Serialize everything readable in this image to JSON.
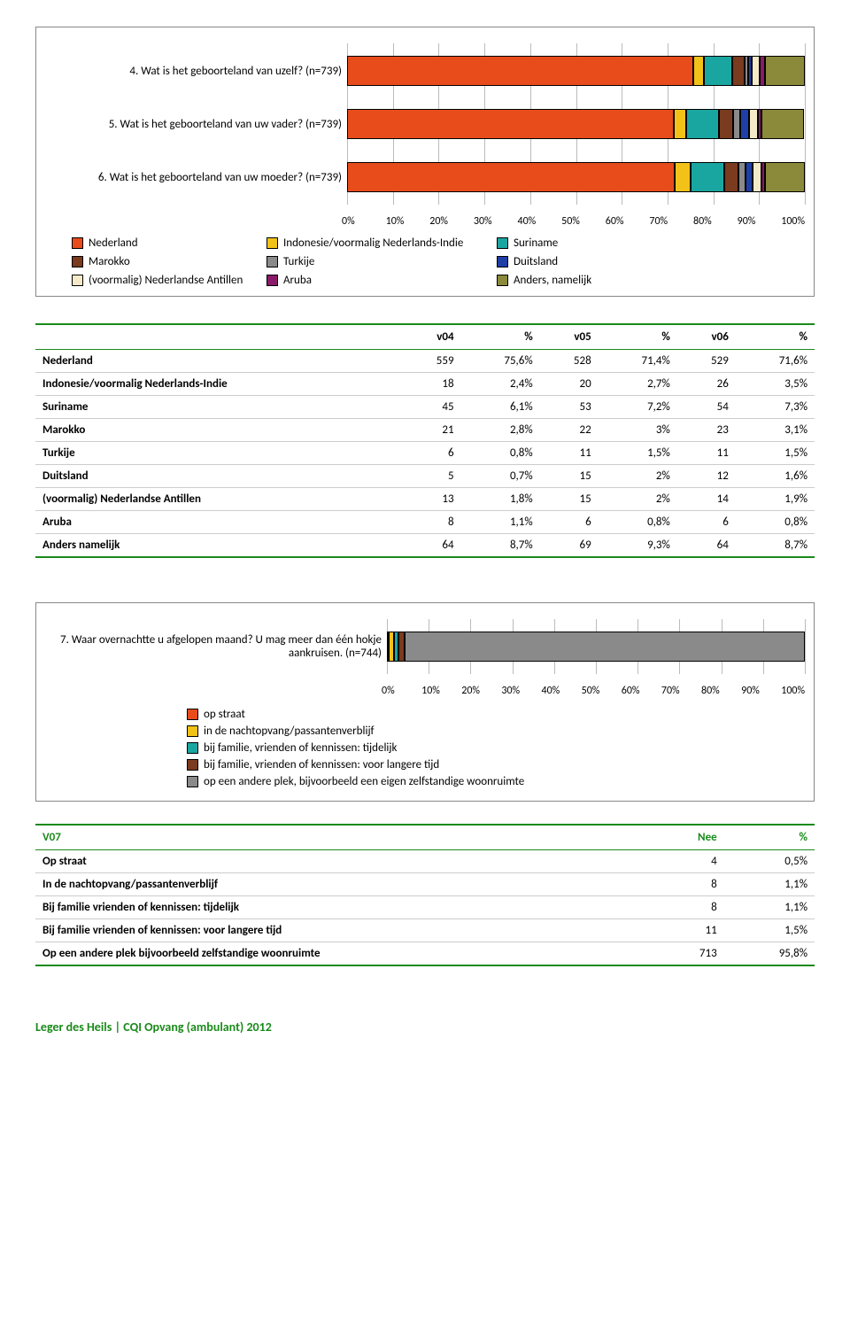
{
  "colors": {
    "nederland": "#e84c1a",
    "indonesie": "#f2c219",
    "suriname": "#1aa6a0",
    "marokko": "#7a3b1e",
    "turkije": "#8a8a8a",
    "duitsland": "#1f3fa6",
    "antillen": "#f5eac8",
    "aruba": "#8a1a6a",
    "anders": "#8a8a3a",
    "opstraat": "#e84c1a",
    "nacht": "#f2c219",
    "famtijd": "#1aa6a0",
    "famlang": "#7a3b1e",
    "andere": "#8a8a8a"
  },
  "chart1": {
    "ticks": [
      "0%",
      "10%",
      "20%",
      "30%",
      "40%",
      "50%",
      "60%",
      "70%",
      "80%",
      "90%",
      "100%"
    ],
    "rows": [
      {
        "label": "4. Wat is het geboorteland van uzelf? (n=739)",
        "segs": [
          [
            "nederland",
            75.6
          ],
          [
            "indonesie",
            2.4
          ],
          [
            "suriname",
            6.1
          ],
          [
            "marokko",
            2.8
          ],
          [
            "turkije",
            0.8
          ],
          [
            "duitsland",
            0.7
          ],
          [
            "antillen",
            1.8
          ],
          [
            "aruba",
            1.1
          ],
          [
            "anders",
            8.7
          ]
        ]
      },
      {
        "label": "5. Wat is het geboorteland van uw vader? (n=739)",
        "segs": [
          [
            "nederland",
            71.4
          ],
          [
            "indonesie",
            2.7
          ],
          [
            "suriname",
            7.2
          ],
          [
            "marokko",
            3.0
          ],
          [
            "turkije",
            1.5
          ],
          [
            "duitsland",
            2.0
          ],
          [
            "antillen",
            2.0
          ],
          [
            "aruba",
            0.8
          ],
          [
            "anders",
            9.3
          ]
        ]
      },
      {
        "label": "6. Wat is het geboorteland van uw moeder? (n=739)",
        "segs": [
          [
            "nederland",
            71.6
          ],
          [
            "indonesie",
            3.5
          ],
          [
            "suriname",
            7.3
          ],
          [
            "marokko",
            3.1
          ],
          [
            "turkije",
            1.5
          ],
          [
            "duitsland",
            1.6
          ],
          [
            "antillen",
            1.9
          ],
          [
            "aruba",
            0.8
          ],
          [
            "anders",
            8.7
          ]
        ]
      }
    ],
    "legend": [
      [
        "nederland",
        "Nederland"
      ],
      [
        "indonesie",
        "Indonesie/voormalig Nederlands-Indie"
      ],
      [
        "suriname",
        "Suriname"
      ],
      [
        "marokko",
        "Marokko"
      ],
      [
        "turkije",
        "Turkije"
      ],
      [
        "duitsland",
        "Duitsland"
      ],
      [
        "antillen",
        "(voormalig) Nederlandse Antillen"
      ],
      [
        "aruba",
        "Aruba"
      ],
      [
        "anders",
        "Anders, namelijk"
      ]
    ]
  },
  "table1": {
    "headers": [
      "",
      "v04",
      "%",
      "v05",
      "%",
      "v06",
      "%"
    ],
    "rows": [
      [
        "Nederland",
        "559",
        "75,6%",
        "528",
        "71,4%",
        "529",
        "71,6%"
      ],
      [
        "Indonesie/voormalig Nederlands-Indie",
        "18",
        "2,4%",
        "20",
        "2,7%",
        "26",
        "3,5%"
      ],
      [
        "Suriname",
        "45",
        "6,1%",
        "53",
        "7,2%",
        "54",
        "7,3%"
      ],
      [
        "Marokko",
        "21",
        "2,8%",
        "22",
        "3%",
        "23",
        "3,1%"
      ],
      [
        "Turkije",
        "6",
        "0,8%",
        "11",
        "1,5%",
        "11",
        "1,5%"
      ],
      [
        "Duitsland",
        "5",
        "0,7%",
        "15",
        "2%",
        "12",
        "1,6%"
      ],
      [
        "(voormalig) Nederlandse Antillen",
        "13",
        "1,8%",
        "15",
        "2%",
        "14",
        "1,9%"
      ],
      [
        "Aruba",
        "8",
        "1,1%",
        "6",
        "0,8%",
        "6",
        "0,8%"
      ],
      [
        "Anders  namelijk",
        "64",
        "8,7%",
        "69",
        "9,3%",
        "64",
        "8,7%"
      ]
    ]
  },
  "chart2": {
    "label": "7. Waar overnachtte u afgelopen maand? U mag meer dan één hokje aankruisen. (n=744)",
    "ticks": [
      "0%",
      "10%",
      "20%",
      "30%",
      "40%",
      "50%",
      "60%",
      "70%",
      "80%",
      "90%",
      "100%"
    ],
    "segs": [
      [
        "opstraat",
        0.5
      ],
      [
        "nacht",
        1.1
      ],
      [
        "famtijd",
        1.1
      ],
      [
        "famlang",
        1.5
      ],
      [
        "andere",
        95.8
      ]
    ],
    "legend": [
      [
        "opstraat",
        "op straat"
      ],
      [
        "nacht",
        "in de nachtopvang/passantenverblijf"
      ],
      [
        "famtijd",
        "bij familie, vrienden of kennissen: tijdelijk"
      ],
      [
        "famlang",
        "bij familie, vrienden of kennissen: voor langere tijd"
      ],
      [
        "andere",
        "op een andere plek, bijvoorbeeld een eigen zelfstandige woonruimte"
      ]
    ]
  },
  "table2": {
    "headers": [
      "V07",
      "Nee",
      "%"
    ],
    "rows": [
      [
        "Op straat",
        "4",
        "0,5%"
      ],
      [
        "In de nachtopvang/passantenverblijf",
        "8",
        "1,1%"
      ],
      [
        "Bij familie  vrienden of kennissen: tijdelijk",
        "8",
        "1,1%"
      ],
      [
        "Bij familie  vrienden of kennissen: voor langere tijd",
        "11",
        "1,5%"
      ],
      [
        "Op een andere plek  bijvoorbeeld zelfstandige woonruimte",
        "713",
        "95,8%"
      ]
    ]
  },
  "footer": "Leger des Heils | CQI Opvang (ambulant) 2012"
}
